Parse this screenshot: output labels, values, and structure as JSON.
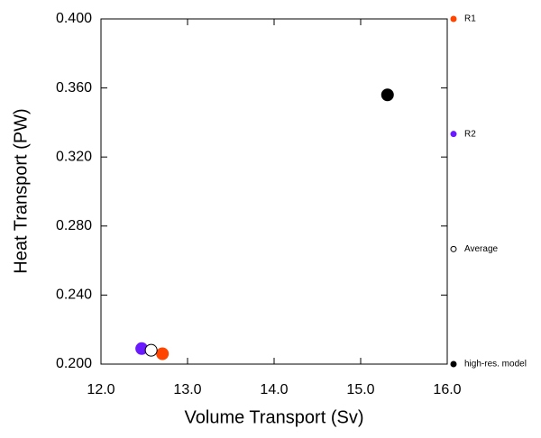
{
  "chart_data": {
    "type": "scatter",
    "xlabel": "Volume Transport (Sv)",
    "ylabel": "Heat Transport (PW)",
    "xlim": [
      12,
      16
    ],
    "ylim": [
      0.2,
      0.4
    ],
    "xticks": [
      {
        "value": 12,
        "label": "12.0"
      },
      {
        "value": 13,
        "label": "13.0"
      },
      {
        "value": 14,
        "label": "14.0"
      },
      {
        "value": 15,
        "label": "15.0"
      },
      {
        "value": 16,
        "label": "16.0"
      }
    ],
    "yticks": [
      {
        "value": 0.2,
        "label": "0.200"
      },
      {
        "value": 0.24,
        "label": "0.240"
      },
      {
        "value": 0.28,
        "label": "0.280"
      },
      {
        "value": 0.32,
        "label": "0.320"
      },
      {
        "value": 0.36,
        "label": "0.360"
      },
      {
        "value": 0.4,
        "label": "0.400"
      }
    ],
    "legend": "right",
    "series": [
      {
        "name": "R1",
        "color": "#ff4500",
        "x": [
          12.71
        ],
        "values": [
          0.206
        ]
      },
      {
        "name": "R2",
        "color": "#6a1aff",
        "x": [
          12.47
        ],
        "values": [
          0.209
        ]
      },
      {
        "name": "Average",
        "color": "#ffffff",
        "edgecolor": "#000000",
        "x": [
          12.58
        ],
        "values": [
          0.208
        ]
      },
      {
        "name": "high-res. model",
        "color": "#000000",
        "x": [
          15.31
        ],
        "values": [
          0.356
        ]
      }
    ]
  }
}
